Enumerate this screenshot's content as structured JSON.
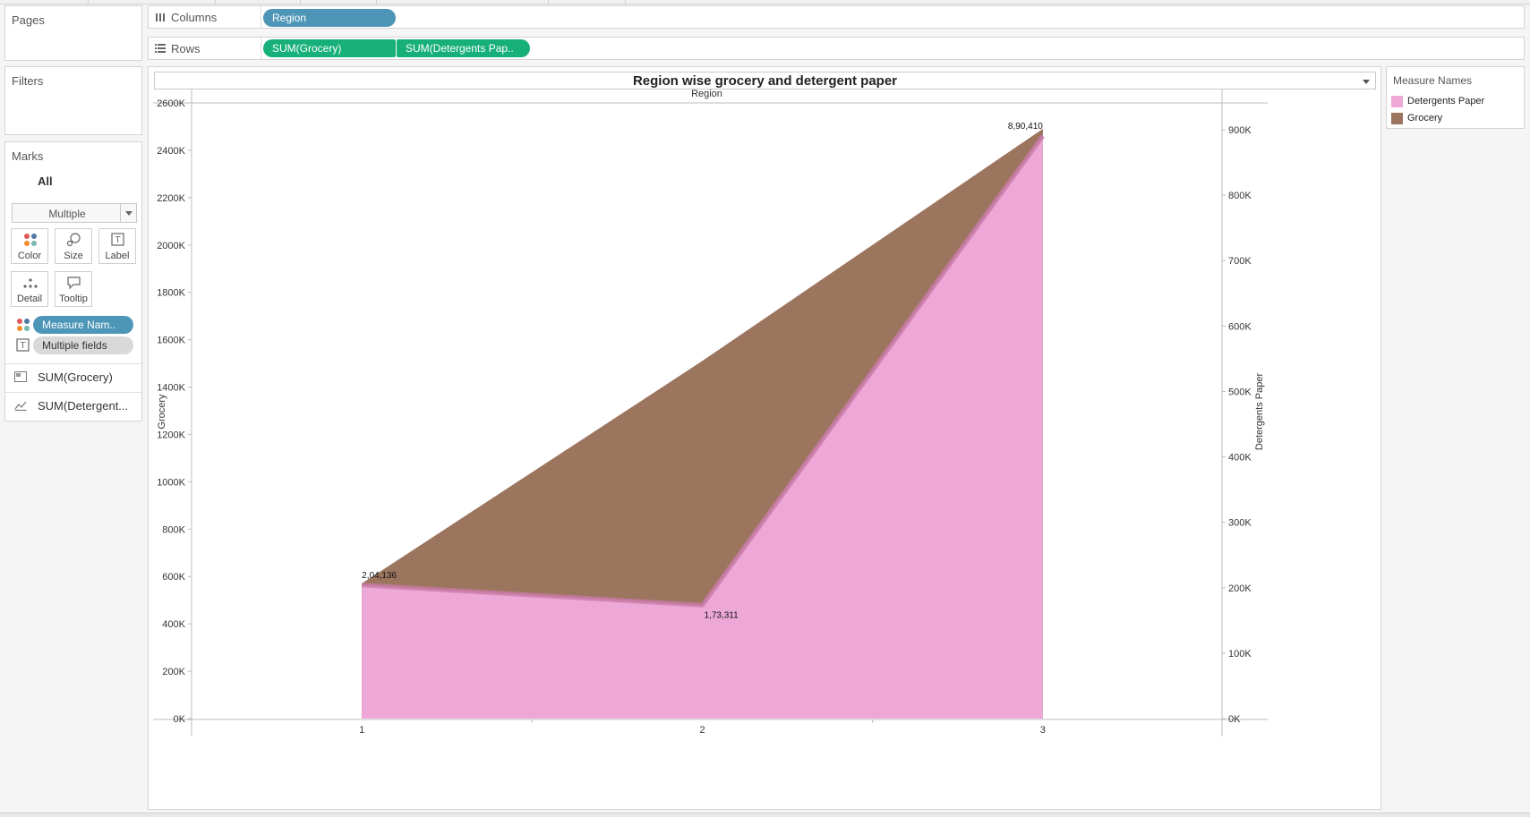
{
  "shelves": {
    "pages_label": "Pages",
    "filters_label": "Filters",
    "columns_label": "Columns",
    "rows_label": "Rows",
    "columns_pills": [
      "Region"
    ],
    "rows_pills": [
      "SUM(Grocery)",
      "SUM(Detergents Pap.."
    ]
  },
  "marks": {
    "title": "Marks",
    "all_label": "All",
    "mark_type": "Multiple",
    "cards": [
      {
        "label": "Color",
        "icon": "color-icon"
      },
      {
        "label": "Size",
        "icon": "size-icon"
      },
      {
        "label": "Label",
        "icon": "label-icon"
      },
      {
        "label": "Detail",
        "icon": "detail-icon"
      },
      {
        "label": "Tooltip",
        "icon": "tooltip-icon"
      }
    ],
    "pills": [
      {
        "icon": "color-icon",
        "label": "Measure Nam.."
      },
      {
        "icon": "label-icon",
        "label": "Multiple fields"
      }
    ],
    "sheets": [
      {
        "icon": "area-chart-icon",
        "label": "SUM(Grocery)"
      },
      {
        "icon": "line-chart-icon",
        "label": "SUM(Detergent..."
      }
    ]
  },
  "legend": {
    "title": "Measure Names",
    "items": [
      {
        "label": "Detergents Paper",
        "color": "#eda8d8"
      },
      {
        "label": "Grocery",
        "color": "#9c755f"
      }
    ]
  },
  "chart_data": {
    "type": "area",
    "title": "Region wise grocery and detergent paper",
    "column_header": "Region",
    "categories": [
      "1",
      "2",
      "3"
    ],
    "series": [
      {
        "name": "Grocery",
        "axis": "left",
        "values": [
          570000,
          1510000,
          2490000
        ],
        "color": "#9c755f"
      },
      {
        "name": "Detergents Paper",
        "axis": "right",
        "values": [
          204136,
          173311,
          890410
        ],
        "color": "#eda8d8",
        "labels": [
          "2,04,136",
          "1,73,311",
          "8,90,410"
        ]
      }
    ],
    "ylabel_left": "Grocery",
    "ylabel_right": "Detergents Paper",
    "ylim_left": [
      0,
      2600000
    ],
    "ylim_right": [
      0,
      900000
    ],
    "yticks_left": [
      "0K",
      "200K",
      "400K",
      "600K",
      "800K",
      "1000K",
      "1200K",
      "1400K",
      "1600K",
      "1800K",
      "2000K",
      "2200K",
      "2400K",
      "2600K"
    ],
    "yticks_right": [
      "0K",
      "100K",
      "200K",
      "300K",
      "400K",
      "500K",
      "600K",
      "700K",
      "800K",
      "900K"
    ],
    "grid": false,
    "legend_position": "right"
  }
}
